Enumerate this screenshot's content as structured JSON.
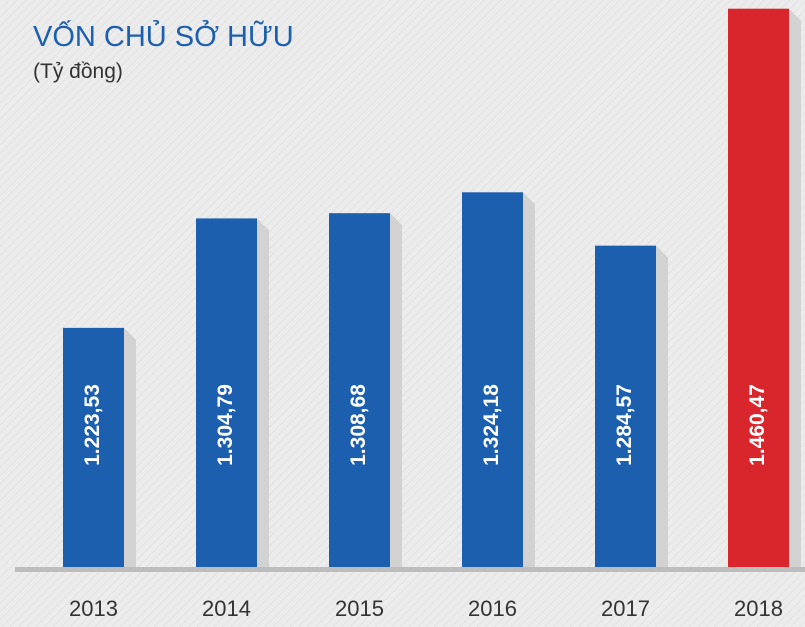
{
  "chart_data": {
    "type": "bar",
    "title": "VỐN CHỦ SỞ HỮU",
    "subtitle": "(Tỷ đồng)",
    "categories": [
      "2013",
      "2014",
      "2015",
      "2016",
      "2017",
      "2018"
    ],
    "values": [
      1223.53,
      1304.79,
      1308.68,
      1324.18,
      1284.57,
      1460.47
    ],
    "value_labels": [
      "1.223,53",
      "1.304,79",
      "1.308,68",
      "1.324,18",
      "1.284,57",
      "1.460,47"
    ],
    "colors": [
      "#1b5fae",
      "#1b5fae",
      "#1b5fae",
      "#1b5fae",
      "#1b5fae",
      "#d8262c"
    ],
    "ylim": [
      1046,
      1461
    ]
  }
}
